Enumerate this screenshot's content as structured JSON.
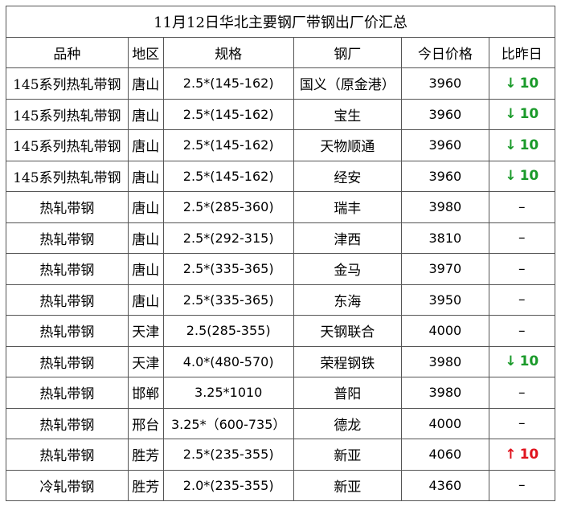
{
  "title": "11月12日华北主要钢厂带钢出厂价汇总",
  "headers": [
    "品种",
    "地区",
    "规格",
    "钢厂",
    "今日价格",
    "比昨日"
  ],
  "colors": {
    "down": "#1a9a2a",
    "up": "#e0141e"
  },
  "rows": [
    {
      "variety": "145系列热轧带钢",
      "region": "唐山",
      "spec": "2.5*(145-162)",
      "mill": "国义（原金港）",
      "price": "3960",
      "change": {
        "dir": "down",
        "arrow": "↓",
        "value": "10"
      }
    },
    {
      "variety": "145系列热轧带钢",
      "region": "唐山",
      "spec": "2.5*(145-162)",
      "mill": "宝生",
      "price": "3960",
      "change": {
        "dir": "down",
        "arrow": "↓",
        "value": "10"
      }
    },
    {
      "variety": "145系列热轧带钢",
      "region": "唐山",
      "spec": "2.5*(145-162)",
      "mill": "天物顺通",
      "price": "3960",
      "change": {
        "dir": "down",
        "arrow": "↓",
        "value": "10"
      }
    },
    {
      "variety": "145系列热轧带钢",
      "region": "唐山",
      "spec": "2.5*(145-162)",
      "mill": "经安",
      "price": "3960",
      "change": {
        "dir": "down",
        "arrow": "↓",
        "value": "10"
      }
    },
    {
      "variety": "热轧带钢",
      "region": "唐山",
      "spec": "2.5*(285-360)",
      "mill": "瑞丰",
      "price": "3980",
      "change": {
        "dir": "flat",
        "arrow": "",
        "value": "–"
      }
    },
    {
      "variety": "热轧带钢",
      "region": "唐山",
      "spec": "2.5*(292-315)",
      "mill": "津西",
      "price": "3810",
      "change": {
        "dir": "flat",
        "arrow": "",
        "value": "–"
      }
    },
    {
      "variety": "热轧带钢",
      "region": "唐山",
      "spec": "2.5*(335-365)",
      "mill": "金马",
      "price": "3970",
      "change": {
        "dir": "flat",
        "arrow": "",
        "value": "–"
      }
    },
    {
      "variety": "热轧带钢",
      "region": "唐山",
      "spec": "2.5*(335-365)",
      "mill": "东海",
      "price": "3950",
      "change": {
        "dir": "flat",
        "arrow": "",
        "value": "–"
      }
    },
    {
      "variety": "热轧带钢",
      "region": "天津",
      "spec": "2.5(285-355)",
      "mill": "天钢联合",
      "price": "4000",
      "change": {
        "dir": "flat",
        "arrow": "",
        "value": "–"
      }
    },
    {
      "variety": "热轧带钢",
      "region": "天津",
      "spec": "4.0*(480-570)",
      "mill": "荣程钢铁",
      "price": "3980",
      "change": {
        "dir": "down",
        "arrow": "↓",
        "value": "10"
      }
    },
    {
      "variety": "热轧带钢",
      "region": "邯郸",
      "spec": "3.25*1010",
      "mill": "普阳",
      "price": "3980",
      "change": {
        "dir": "flat",
        "arrow": "",
        "value": "–"
      }
    },
    {
      "variety": "热轧带钢",
      "region": "邢台",
      "spec": "3.25*（600-735）",
      "mill": "德龙",
      "price": "4000",
      "change": {
        "dir": "flat",
        "arrow": "",
        "value": "–"
      }
    },
    {
      "variety": "热轧带钢",
      "region": "胜芳",
      "spec": "2.5*(235-355)",
      "mill": "新亚",
      "price": "4060",
      "change": {
        "dir": "up",
        "arrow": "↑",
        "value": "10"
      }
    },
    {
      "variety": "冷轧带钢",
      "region": "胜芳",
      "spec": "2.0*(235-355)",
      "mill": "新亚",
      "price": "4360",
      "change": {
        "dir": "flat",
        "arrow": "",
        "value": "–"
      }
    }
  ]
}
